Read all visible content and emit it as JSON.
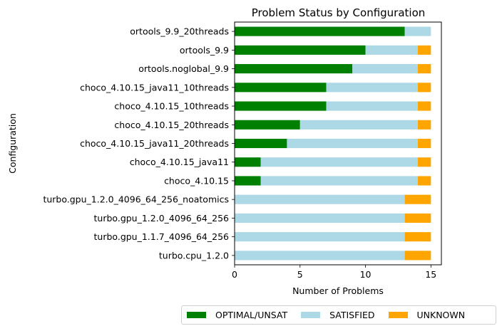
{
  "chart_data": {
    "type": "bar",
    "orientation": "horizontal",
    "stacked": true,
    "title": "Problem Status by Configuration",
    "xlabel": "Number of Problems",
    "ylabel": "Configuration",
    "xlim": [
      0,
      15.8
    ],
    "xticks": [
      0,
      5,
      10,
      15
    ],
    "grid": false,
    "legend_position": "bottom",
    "categories": [
      "turbo.cpu_1.2.0",
      "turbo.gpu_1.1.7_4096_64_256",
      "turbo.gpu_1.2.0_4096_64_256",
      "turbo.gpu_1.2.0_4096_64_256_noatomics",
      "choco_4.10.15",
      "choco_4.10.15_java11",
      "choco_4.10.15_java11_20threads",
      "choco_4.10.15_20threads",
      "choco_4.10.15_10threads",
      "choco_4.10.15_java11_10threads",
      "ortools.noglobal_9.9",
      "ortools_9.9",
      "ortools_9.9_20threads"
    ],
    "series": [
      {
        "name": "OPTIMAL/UNSAT",
        "color": "#008000",
        "values": [
          0,
          0,
          0,
          0,
          2,
          2,
          4,
          5,
          7,
          7,
          9,
          10,
          13
        ]
      },
      {
        "name": "SATISFIED",
        "color": "#add8e6",
        "values": [
          13,
          13,
          13,
          13,
          12,
          12,
          10,
          9,
          7,
          7,
          5,
          4,
          2
        ]
      },
      {
        "name": "UNKNOWN",
        "color": "#ffa500",
        "values": [
          2,
          2,
          2,
          2,
          1,
          1,
          1,
          1,
          1,
          1,
          1,
          1,
          0
        ]
      }
    ]
  }
}
